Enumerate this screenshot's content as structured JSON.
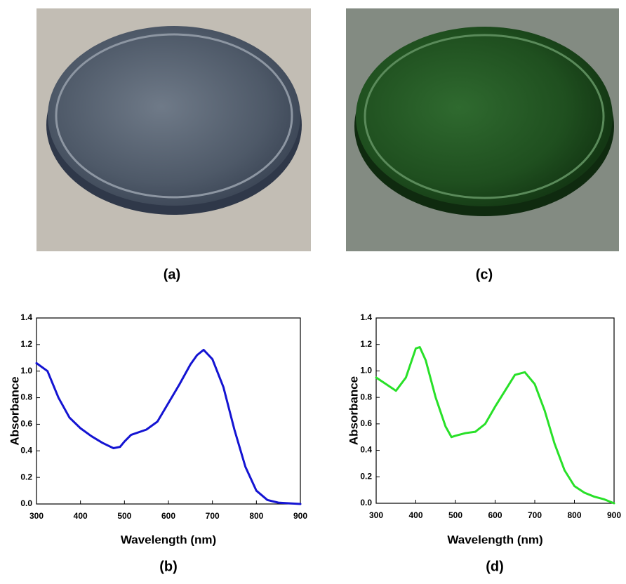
{
  "photos": [
    {
      "label": "(a)"
    },
    {
      "label": "(c)"
    }
  ],
  "chart_data": [
    {
      "type": "line",
      "caption": "(b)",
      "x_label": "Wavelength (nm)",
      "y_label": "Absorbance",
      "x": [
        300,
        325,
        350,
        375,
        400,
        425,
        450,
        475,
        490,
        500,
        515,
        550,
        575,
        600,
        625,
        650,
        665,
        680,
        700,
        725,
        750,
        775,
        800,
        825,
        850,
        900
      ],
      "series": [
        {
          "name": "Absorbance",
          "color": "#1414d2",
          "values": [
            1.06,
            1.0,
            0.8,
            0.65,
            0.57,
            0.51,
            0.46,
            0.42,
            0.43,
            0.47,
            0.52,
            0.56,
            0.62,
            0.76,
            0.9,
            1.05,
            1.12,
            1.16,
            1.09,
            0.88,
            0.56,
            0.28,
            0.1,
            0.03,
            0.01,
            0.0
          ]
        }
      ],
      "xlim": [
        300,
        900
      ],
      "xticks": [
        300,
        400,
        500,
        600,
        700,
        800,
        900
      ],
      "ylim": [
        0,
        1.4
      ],
      "yticks": [
        {
          "value": 0,
          "label": "0.0"
        },
        0.2,
        0.4,
        0.6,
        0.8,
        {
          "value": 1,
          "label": "1.0"
        },
        1.2,
        1.4
      ]
    },
    {
      "type": "line",
      "caption": "(d)",
      "x_label": "Wavelength (nm)",
      "y_label": "Absorbance",
      "x": [
        300,
        325,
        350,
        375,
        400,
        410,
        425,
        450,
        475,
        490,
        500,
        525,
        550,
        575,
        600,
        625,
        650,
        675,
        700,
        725,
        750,
        775,
        800,
        825,
        850,
        875,
        900
      ],
      "series": [
        {
          "name": "Absorbance",
          "color": "#28e028",
          "values": [
            0.95,
            0.9,
            0.85,
            0.95,
            1.17,
            1.18,
            1.08,
            0.8,
            0.58,
            0.5,
            0.51,
            0.53,
            0.54,
            0.6,
            0.73,
            0.85,
            0.97,
            0.99,
            0.9,
            0.7,
            0.45,
            0.25,
            0.13,
            0.08,
            0.05,
            0.03,
            0.0
          ]
        }
      ],
      "xlim": [
        300,
        900
      ],
      "xticks": [
        300,
        400,
        500,
        600,
        700,
        800,
        900
      ],
      "ylim": [
        0,
        1.4
      ],
      "yticks": [
        {
          "value": 0,
          "label": "0.0"
        },
        0.2,
        0.4,
        0.6,
        0.8,
        {
          "value": 1,
          "label": "1.0"
        },
        1.2,
        1.4
      ]
    }
  ]
}
